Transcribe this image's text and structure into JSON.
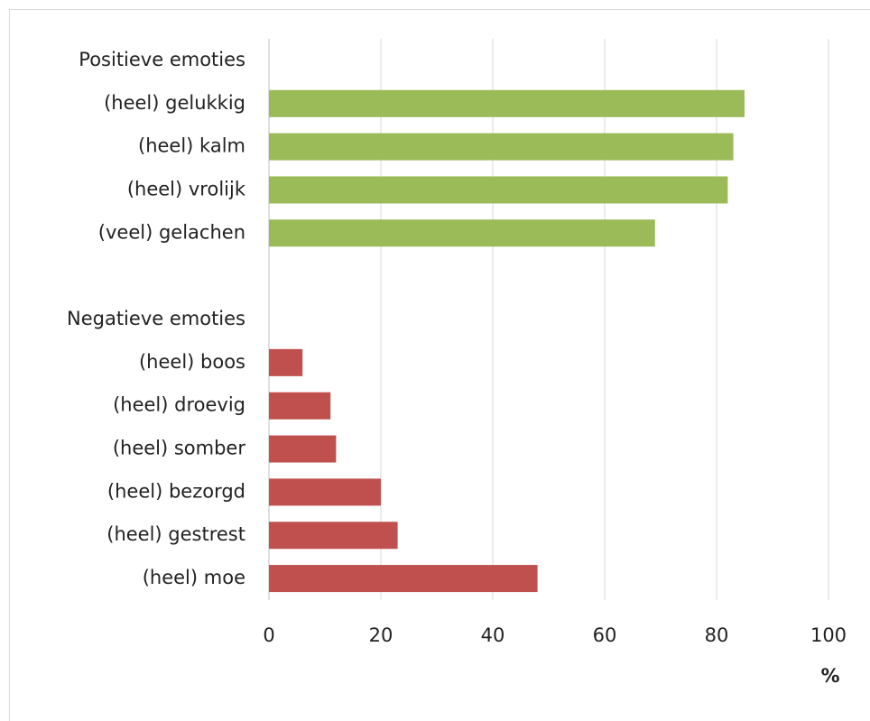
{
  "chart_data": {
    "type": "bar",
    "orientation": "horizontal",
    "categories": [
      "Positieve emoties",
      "(heel) gelukkig",
      "(heel) kalm",
      "(heel) vrolijk",
      "(veel) gelachen",
      null,
      "Negatieve emoties",
      "(heel) boos",
      "(heel) droevig",
      "(heel) somber",
      "(heel) bezorgd",
      "(heel) gestrest",
      "(heel) moe"
    ],
    "values": [
      null,
      85,
      83,
      82,
      69,
      null,
      null,
      6,
      11,
      12,
      20,
      23,
      48
    ],
    "colors": [
      null,
      "#9bbb59",
      "#9bbb59",
      "#9bbb59",
      "#9bbb59",
      null,
      null,
      "#c0504d",
      "#c0504d",
      "#c0504d",
      "#c0504d",
      "#c0504d",
      "#c0504d"
    ],
    "xlabel": "%",
    "xlim": [
      0,
      100
    ],
    "xticks": [
      0,
      20,
      40,
      60,
      80,
      100
    ],
    "grid": true
  }
}
